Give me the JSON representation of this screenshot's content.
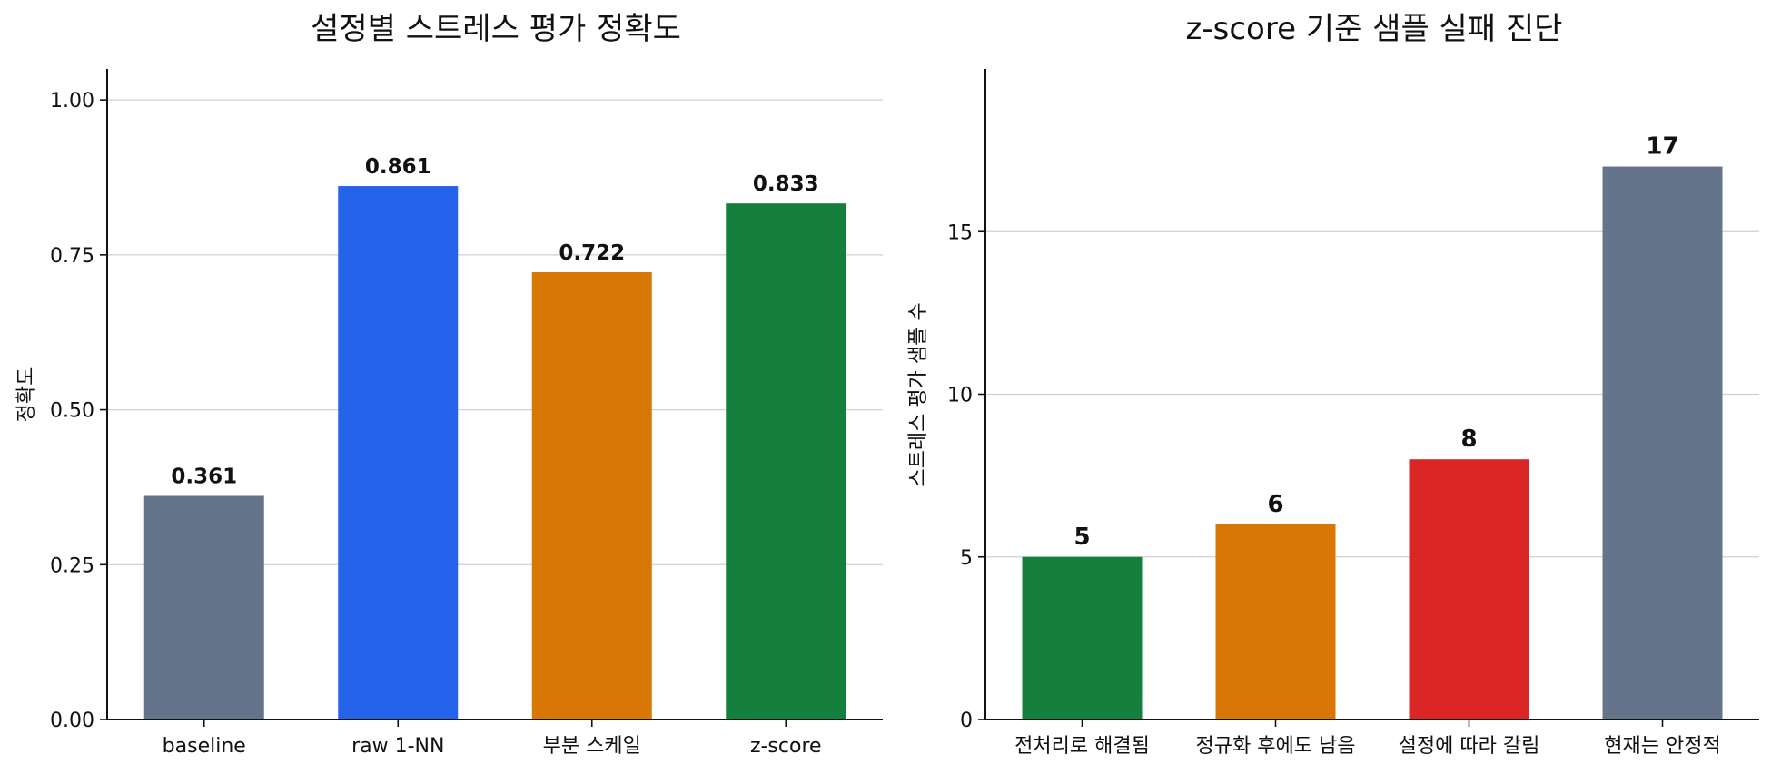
{
  "chart_data": [
    {
      "type": "bar",
      "title": "설정별 스트레스 평가 정확도",
      "xlabel": "",
      "ylabel": "정확도",
      "categories": [
        "baseline",
        "raw 1-NN",
        "부분 스케일",
        "z-score"
      ],
      "values": [
        0.361,
        0.861,
        0.722,
        0.833
      ],
      "value_labels": [
        "0.361",
        "0.861",
        "0.722",
        "0.833"
      ],
      "colors": [
        "#64748b",
        "#2563eb",
        "#d97706",
        "#15803d"
      ],
      "ylim": [
        0,
        1.05
      ],
      "yticks": [
        0,
        0.25,
        0.5,
        0.75,
        1.0
      ],
      "ytick_labels": [
        "0.00",
        "0.25",
        "0.50",
        "0.75",
        "1.00"
      ],
      "grid": true
    },
    {
      "type": "bar",
      "title": "z-score 기준 샘플 실패 진단",
      "xlabel": "",
      "ylabel": "스트레스 평가 샘플 수",
      "categories": [
        "전처리로 해결됨",
        "정규화 후에도 남음",
        "설정에 따라 갈림",
        "현재는 안정적"
      ],
      "values": [
        5,
        6,
        8,
        17
      ],
      "value_labels": [
        "5",
        "6",
        "8",
        "17"
      ],
      "colors": [
        "#15803d",
        "#d97706",
        "#dc2626",
        "#64748b"
      ],
      "ylim": [
        0,
        20
      ],
      "yticks": [
        0,
        5,
        10,
        15
      ],
      "ytick_labels": [
        "0",
        "5",
        "10",
        "15"
      ],
      "grid": true
    }
  ]
}
